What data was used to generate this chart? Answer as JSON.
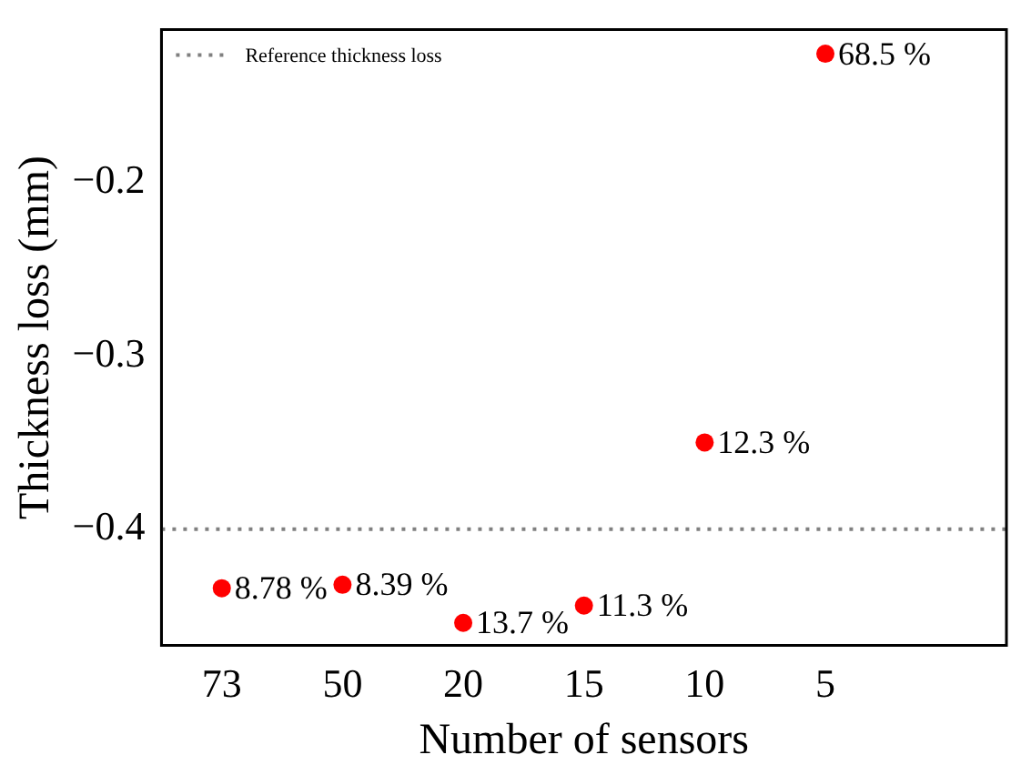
{
  "chart_data": {
    "type": "scatter",
    "xlabel": "Number of sensors",
    "ylabel": "Thickness loss (mm)",
    "categories": [
      "73",
      "50",
      "20",
      "15",
      "10",
      "5",
      null
    ],
    "series": [
      {
        "color": "#ff0000",
        "values": [
          -0.434,
          -0.432,
          -0.454,
          -0.444,
          -0.35,
          -0.126,
          null
        ]
      }
    ],
    "annotations": [
      {
        "text": "8.78 %",
        "x": "73",
        "y": -0.434
      },
      {
        "text": "8.39 %",
        "x": "50",
        "y": -0.432
      },
      {
        "text": "13.7 %",
        "x": "20",
        "y": -0.454
      },
      {
        "text": "11.3 %",
        "x": "15",
        "y": -0.444
      },
      {
        "text": "12.3 %",
        "x": "10",
        "y": -0.35
      },
      {
        "text": "68.5 %",
        "x": "5",
        "y": -0.126
      }
    ],
    "ylim": [
      -0.467,
      -0.112
    ],
    "yticks": [
      -0.4,
      -0.3,
      -0.2
    ],
    "legend": "top left",
    "marker": "circle",
    "ref_lines": [
      {
        "axis": "y",
        "value": -0.4,
        "label": "Reference thickness loss",
        "color": "#808080",
        "line_style": "dotted"
      }
    ]
  }
}
